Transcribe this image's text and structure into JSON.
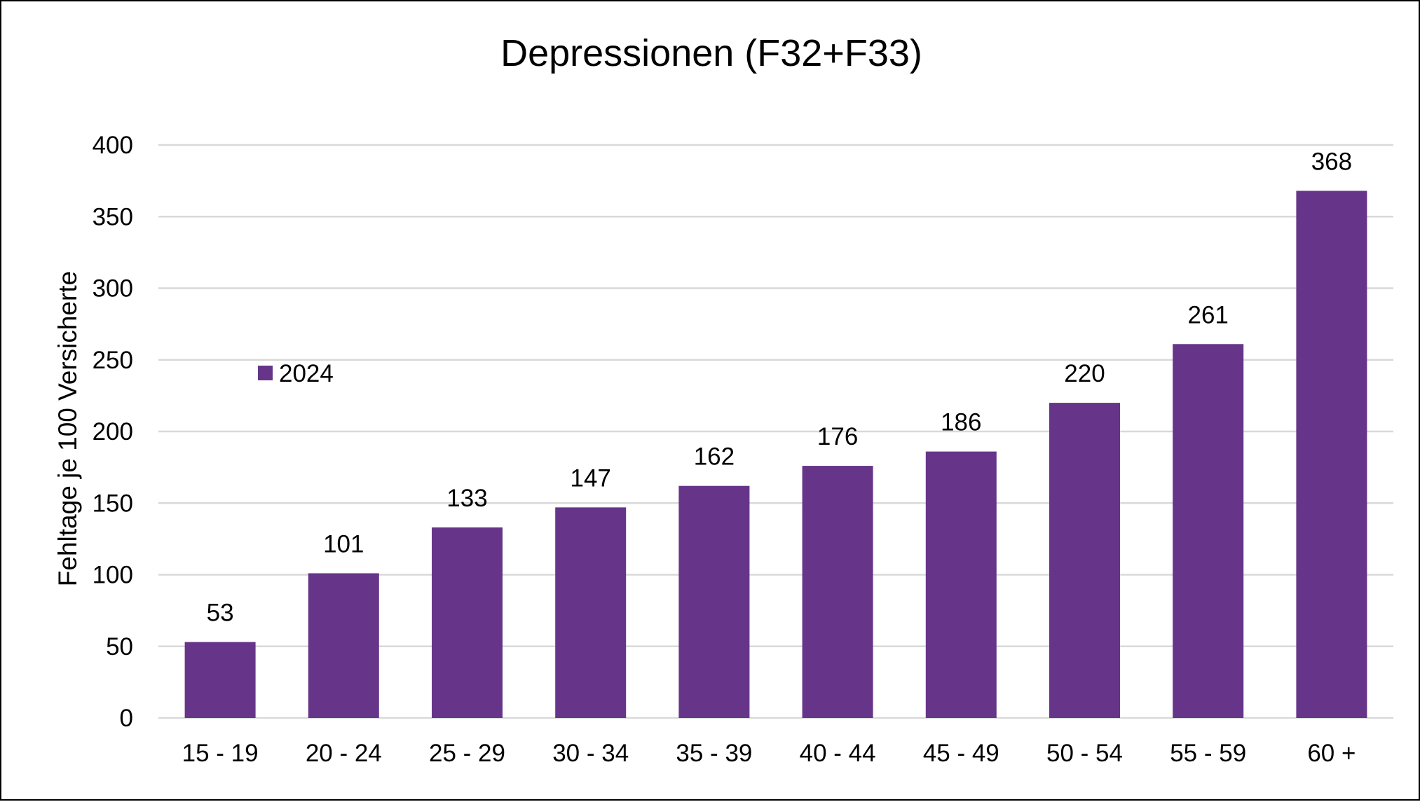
{
  "chart_data": {
    "type": "bar",
    "title": "Depressionen (F32+F33)",
    "xlabel": "",
    "ylabel": "Fehltage je 100 Versicherte",
    "categories": [
      "15 - 19",
      "20 - 24",
      "25 - 29",
      "30 - 34",
      "35 - 39",
      "40 - 44",
      "45 - 49",
      "50 - 54",
      "55 - 59",
      "60 +"
    ],
    "series": [
      {
        "name": "2024",
        "values": [
          53,
          101,
          133,
          147,
          162,
          176,
          186,
          220,
          261,
          368
        ],
        "color": "#663589"
      }
    ],
    "ylim": [
      0,
      400
    ],
    "yticks": [
      0,
      50,
      100,
      150,
      200,
      250,
      300,
      350,
      400
    ],
    "ytick_labels": [
      "0",
      "50",
      "100",
      "150",
      "200",
      "250",
      "300",
      "350",
      "400"
    ],
    "grid": true,
    "gridline_color": "#d9d9d9",
    "data_labels": true,
    "legend": {
      "position": "left",
      "entries": [
        "2024"
      ]
    }
  }
}
